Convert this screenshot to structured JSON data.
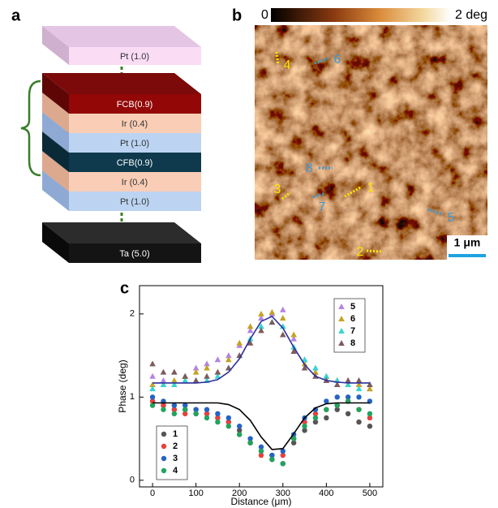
{
  "panel_a": {
    "label": "a",
    "layers": [
      "Pt (1.0)",
      "FCB(0.9)",
      "Ir (0.4)",
      "Pt (1.0)",
      "CFB(0.9)",
      "Ir (0.4)",
      "Pt (1.0)",
      "Ta (5.0)"
    ]
  },
  "panel_b": {
    "label": "b",
    "colorbar": {
      "min_label": "0",
      "max_label": "2 deg"
    },
    "scale_bar": "1 μm",
    "markers": [
      "1",
      "2",
      "3",
      "4",
      "5",
      "6",
      "7",
      "8"
    ]
  },
  "chart_data": {
    "type": "scatter",
    "panel_label": "c",
    "x_label": "Distance (μm)",
    "y_label": "Phase (deg)",
    "xlim": [
      -30,
      530
    ],
    "ylim": [
      -0.08,
      2.34
    ],
    "xticks": [
      0,
      100,
      200,
      300,
      400,
      500
    ],
    "yticks": [
      0,
      1,
      2
    ],
    "x": [
      0,
      25,
      50,
      75,
      100,
      125,
      150,
      175,
      200,
      225,
      250,
      275,
      300,
      325,
      350,
      375,
      400,
      425,
      450,
      475,
      500
    ],
    "series": [
      {
        "name": "1",
        "color": "#555555",
        "marker": "circle",
        "legend": "lower-left",
        "values": [
          0.95,
          0.9,
          0.85,
          0.85,
          0.8,
          0.8,
          0.75,
          0.7,
          0.6,
          0.45,
          0.35,
          0.3,
          0.2,
          0.45,
          0.6,
          0.7,
          0.75,
          0.85,
          0.8,
          0.7,
          0.65
        ]
      },
      {
        "name": "2",
        "color": "#e8403c",
        "marker": "circle",
        "legend": "lower-left",
        "values": [
          0.95,
          0.9,
          0.85,
          0.8,
          0.85,
          0.8,
          0.75,
          0.7,
          0.55,
          0.45,
          0.3,
          0.25,
          0.3,
          0.5,
          0.7,
          0.8,
          0.85,
          0.9,
          0.95,
          0.85,
          0.75
        ]
      },
      {
        "name": "3",
        "color": "#2563c4",
        "marker": "circle",
        "legend": "lower-left",
        "values": [
          1.0,
          0.95,
          0.9,
          0.9,
          0.85,
          0.85,
          0.8,
          0.75,
          0.65,
          0.5,
          0.4,
          0.3,
          0.35,
          0.55,
          0.75,
          0.85,
          0.95,
          1.0,
          1.0,
          1.0,
          0.95
        ]
      },
      {
        "name": "4",
        "color": "#22a35e",
        "marker": "circle",
        "legend": "lower-left",
        "values": [
          0.9,
          0.85,
          0.8,
          0.85,
          0.8,
          0.75,
          0.7,
          0.65,
          0.55,
          0.45,
          0.35,
          0.25,
          0.2,
          0.5,
          0.65,
          0.75,
          0.85,
          0.9,
          0.95,
          0.85,
          0.8
        ]
      },
      {
        "name": "5",
        "color": "#b484e0",
        "marker": "triangle",
        "legend": "upper-right",
        "values": [
          1.25,
          1.2,
          1.3,
          1.25,
          1.35,
          1.4,
          1.45,
          1.5,
          1.62,
          1.8,
          1.95,
          2.0,
          2.05,
          1.7,
          1.45,
          1.3,
          1.2,
          1.15,
          1.2,
          1.15,
          1.1
        ]
      },
      {
        "name": "6",
        "color": "#c4a322",
        "marker": "triangle",
        "legend": "upper-right",
        "values": [
          1.15,
          1.15,
          1.2,
          1.25,
          1.3,
          1.35,
          1.3,
          1.45,
          1.65,
          1.85,
          2.0,
          2.02,
          1.95,
          1.75,
          1.4,
          1.3,
          1.25,
          1.2,
          1.15,
          1.15,
          1.1
        ]
      },
      {
        "name": "7",
        "color": "#36d4d4",
        "marker": "triangle",
        "legend": "upper-right",
        "values": [
          1.1,
          1.15,
          1.15,
          1.2,
          1.2,
          1.2,
          1.25,
          1.35,
          1.5,
          1.7,
          1.85,
          1.9,
          1.85,
          1.6,
          1.45,
          1.35,
          1.25,
          1.2,
          1.15,
          1.1,
          1.15
        ]
      },
      {
        "name": "8",
        "color": "#7d5c5c",
        "marker": "triangle",
        "legend": "upper-right",
        "values": [
          1.4,
          1.3,
          1.3,
          1.25,
          1.2,
          1.25,
          1.3,
          1.35,
          1.5,
          1.65,
          1.8,
          1.9,
          1.75,
          1.55,
          1.35,
          1.25,
          1.2,
          1.15,
          1.2,
          1.2,
          1.15
        ]
      },
      {
        "color": "#2e2e9c",
        "marker": "line",
        "values": [
          1.17,
          1.17,
          1.17,
          1.17,
          1.17,
          1.18,
          1.21,
          1.3,
          1.46,
          1.7,
          1.91,
          1.97,
          1.83,
          1.6,
          1.39,
          1.25,
          1.2,
          1.18,
          1.17,
          1.17,
          1.17
        ]
      },
      {
        "color": "#000000",
        "marker": "line",
        "values": [
          0.93,
          0.93,
          0.93,
          0.93,
          0.93,
          0.93,
          0.93,
          0.91,
          0.85,
          0.72,
          0.52,
          0.37,
          0.38,
          0.56,
          0.75,
          0.87,
          0.92,
          0.93,
          0.93,
          0.93,
          0.93
        ]
      }
    ]
  }
}
